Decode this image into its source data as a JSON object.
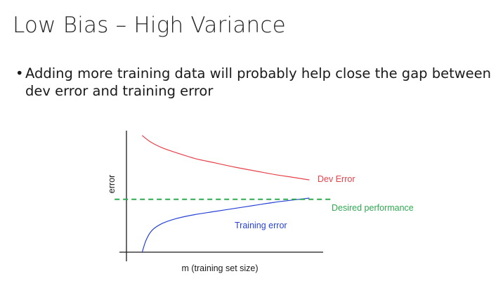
{
  "slide": {
    "title": "Low Bias – High Variance",
    "bullet_marker": "•",
    "bullet_lines": [
      "Adding more training data will probably help close the gap between",
      "dev error and training error"
    ]
  },
  "chart_data": {
    "type": "line",
    "title": "",
    "xlabel": "m (training set size)",
    "ylabel": "error",
    "xlim": [
      0,
      10
    ],
    "ylim": [
      0,
      10
    ],
    "grid": false,
    "legend": "none (series labeled inline)",
    "series": [
      {
        "name": "Dev Error",
        "color": "#e8414a",
        "style": "solid",
        "x": [
          0.8,
          1.2,
          1.8,
          2.5,
          3.5,
          4.5,
          5.5,
          6.5,
          7.5,
          8.5,
          9.3
        ],
        "y": [
          9.6,
          9.1,
          8.6,
          8.2,
          7.7,
          7.35,
          7.0,
          6.7,
          6.4,
          6.15,
          5.95
        ]
      },
      {
        "name": "Training error",
        "color": "#2742d8",
        "style": "solid",
        "x": [
          0.8,
          1.0,
          1.3,
          1.8,
          2.5,
          3.5,
          4.5,
          5.5,
          6.5,
          7.5,
          8.5,
          9.3
        ],
        "y": [
          0.0,
          1.0,
          1.8,
          2.35,
          2.75,
          3.1,
          3.35,
          3.6,
          3.85,
          4.1,
          4.3,
          4.45
        ]
      },
      {
        "name": "Desired performance",
        "color": "#2eaa50",
        "style": "dashed",
        "x": [
          -0.6,
          10.4
        ],
        "y": [
          4.35,
          4.35
        ]
      }
    ]
  }
}
